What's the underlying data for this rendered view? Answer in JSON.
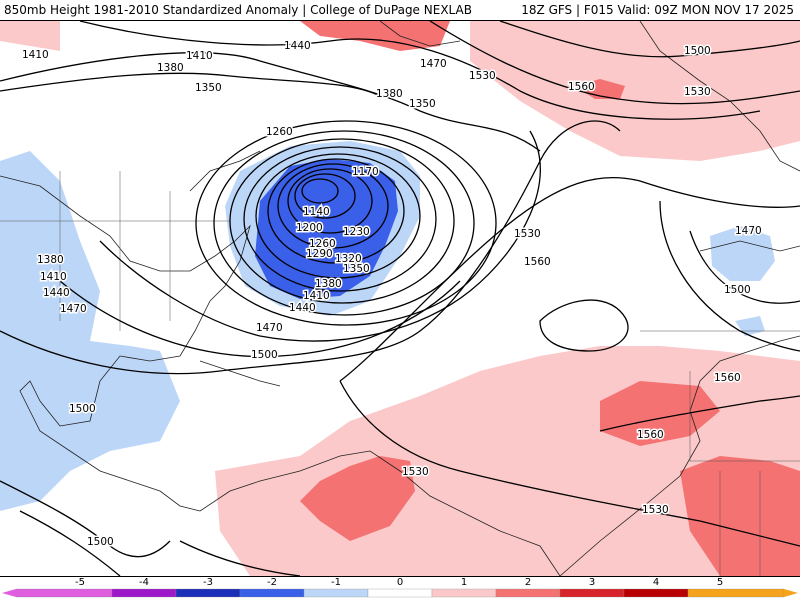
{
  "header": {
    "title": "850mb Height 1981-2010 Standardized Anomaly | College of DuPage NEXLAB",
    "run_info": "18Z GFS | F015 Valid: 09Z MON NOV 17 2025"
  },
  "contour_labels": [
    "1410",
    "1410",
    "1440",
    "1380",
    "1350",
    "1260",
    "1170",
    "1140",
    "1200",
    "1230",
    "1260",
    "1290",
    "1320",
    "1350",
    "1380",
    "1410",
    "1440",
    "1470",
    "1500",
    "1380",
    "1410",
    "1440",
    "1470",
    "1500",
    "1470",
    "1530",
    "1560",
    "1500",
    "1530",
    "1380",
    "1350",
    "1530",
    "1560",
    "1470",
    "1500",
    "1560",
    "1560",
    "1530",
    "1530",
    "1500"
  ],
  "colorbar": {
    "ticks": [
      "-5",
      "-4",
      "-3",
      "-2",
      "-1",
      "0",
      "1",
      "2",
      "3",
      "4",
      "5"
    ],
    "colors": [
      "#e05de0",
      "#9d18c8",
      "#1c2fb8",
      "#3a5fe8",
      "#bcd6f8",
      "#ffffff",
      "#fbc9c9",
      "#f47272",
      "#d6242a",
      "#b80000",
      "#f4a31a"
    ]
  },
  "anomaly_colors": {
    "strong_negative": "#3a5fe8",
    "weak_negative": "#bcd6f8",
    "weak_positive": "#fbc9c9",
    "moderate_positive": "#f47272"
  }
}
